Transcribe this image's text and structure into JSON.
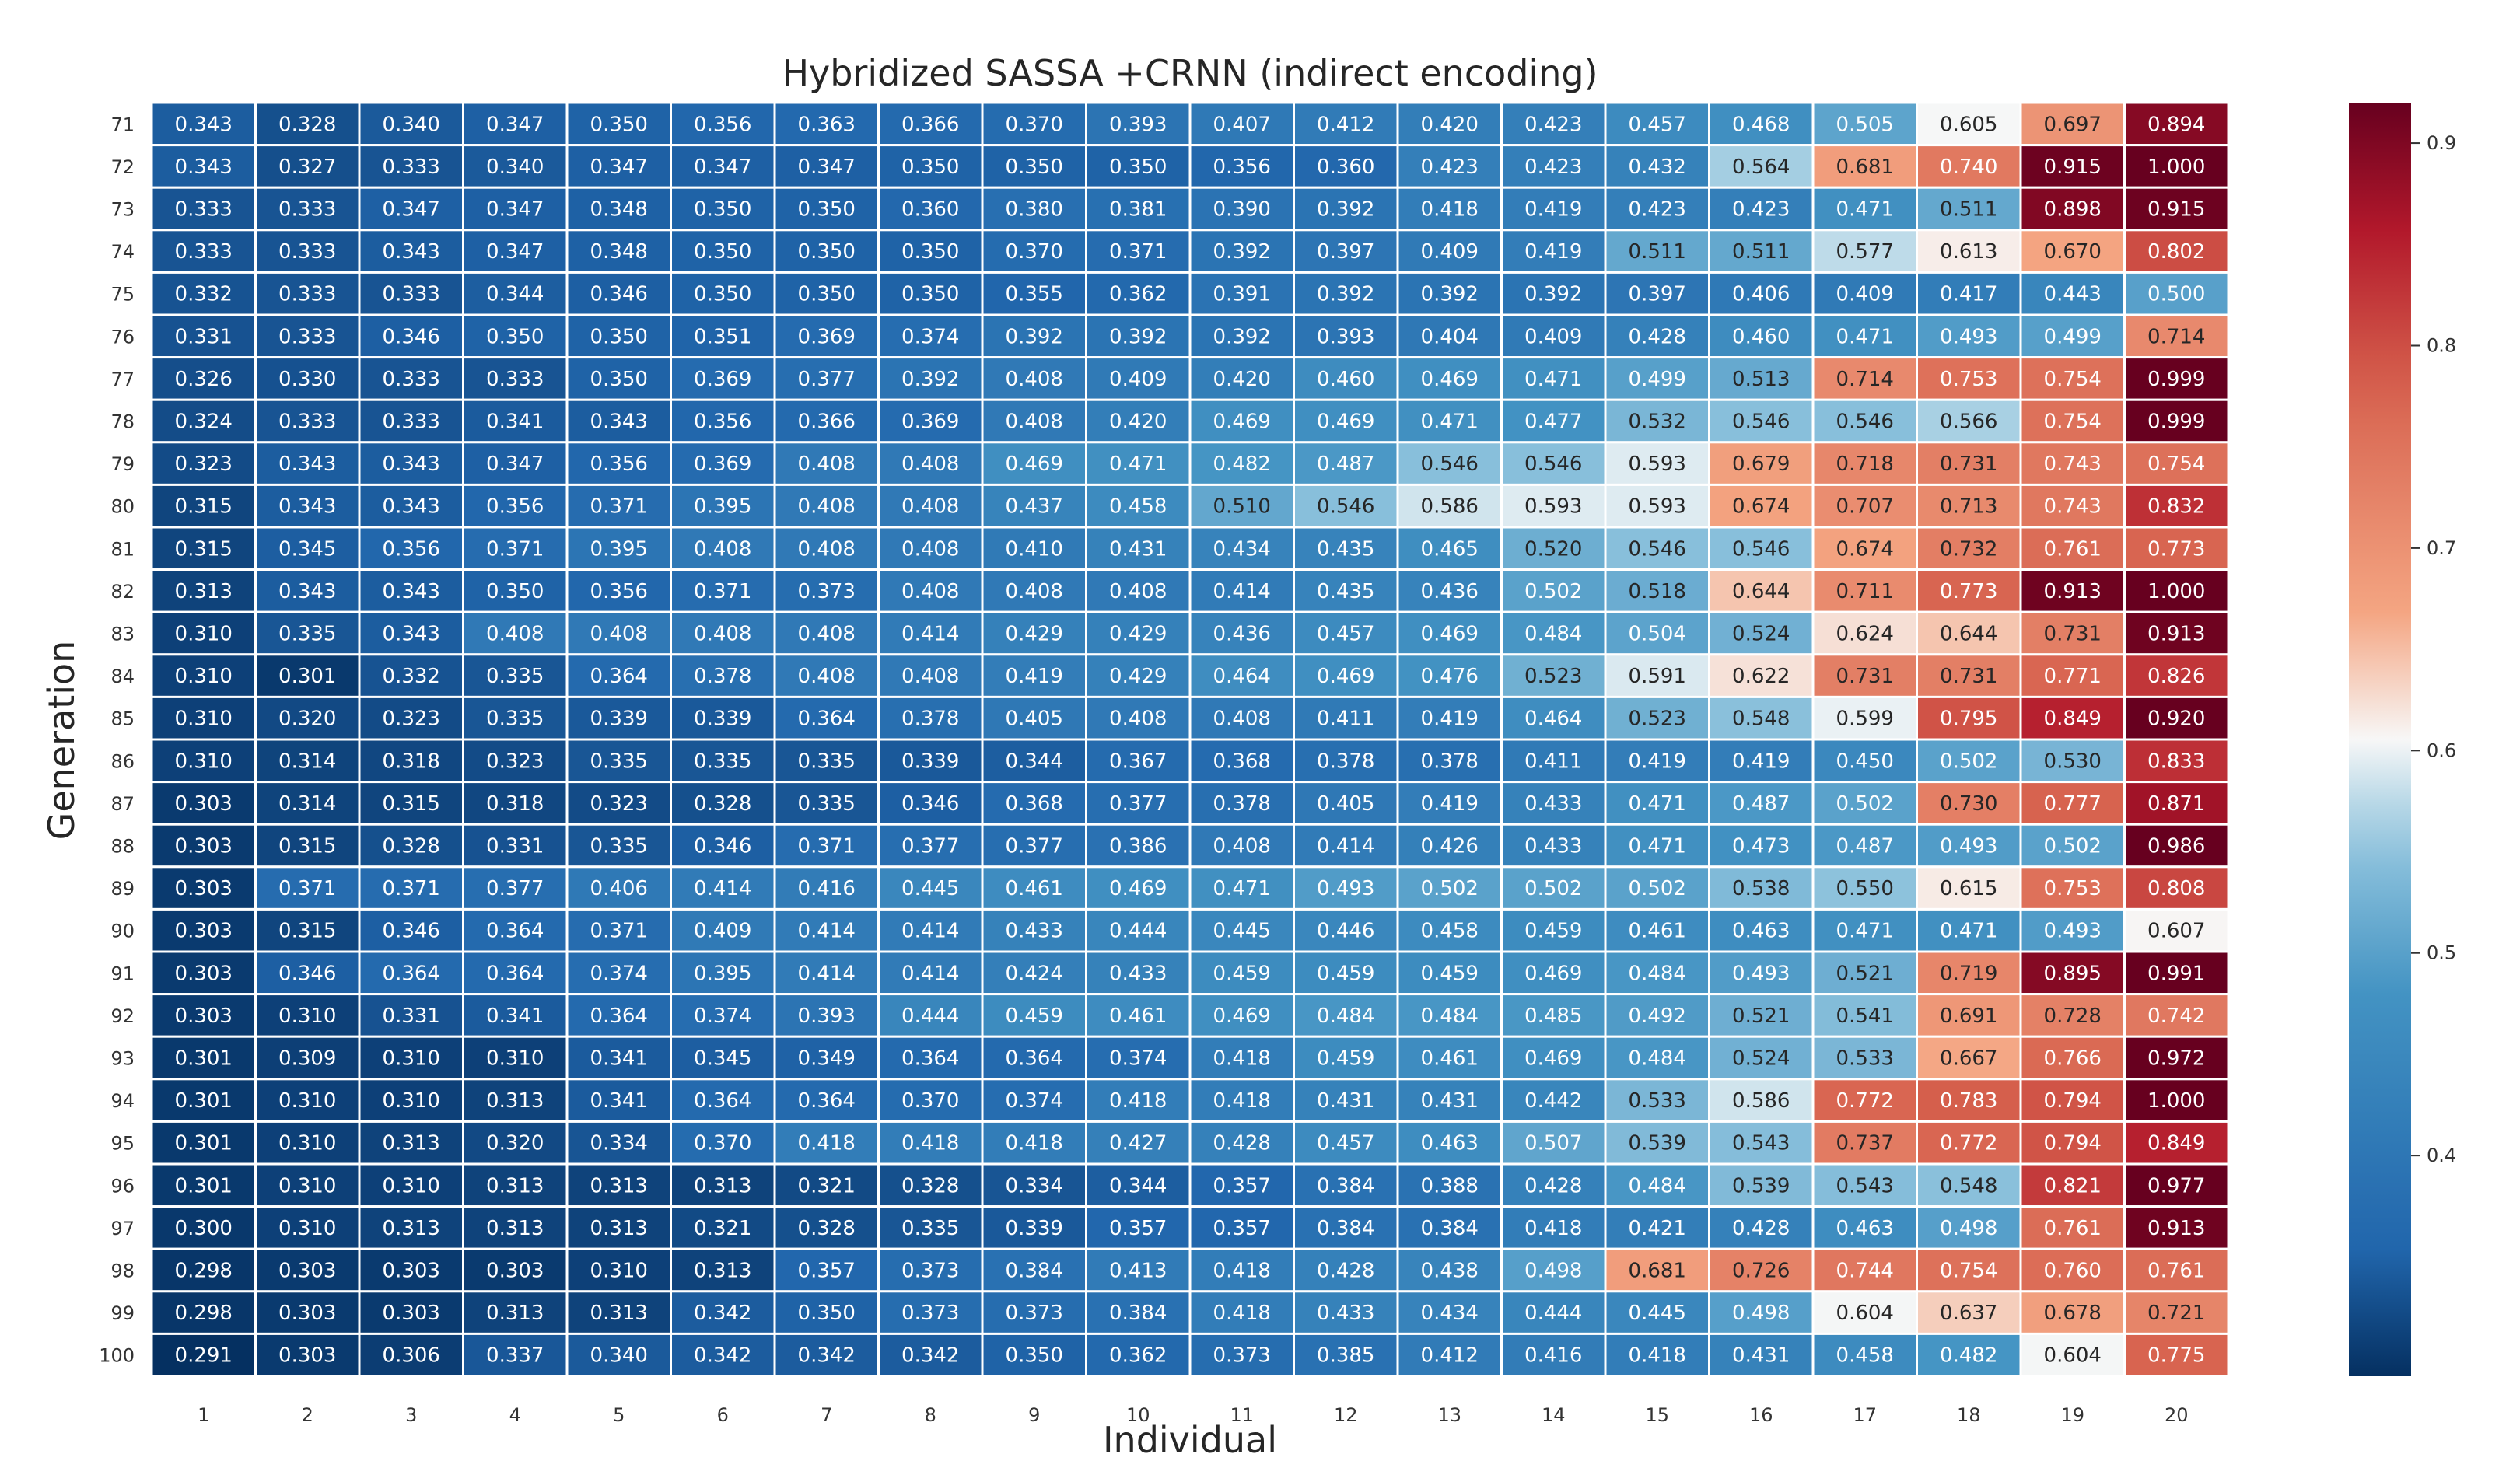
{
  "chart_data": {
    "type": "heatmap",
    "title": "Hybridized SASSA +CRNN (indirect encoding)",
    "xlabel": "Individual",
    "ylabel": "Generation",
    "x_categories": [
      "1",
      "2",
      "3",
      "4",
      "5",
      "6",
      "7",
      "8",
      "9",
      "10",
      "11",
      "12",
      "13",
      "14",
      "15",
      "16",
      "17",
      "18",
      "19",
      "20"
    ],
    "y_categories": [
      "71",
      "72",
      "73",
      "74",
      "75",
      "76",
      "77",
      "78",
      "79",
      "80",
      "81",
      "82",
      "83",
      "84",
      "85",
      "86",
      "87",
      "88",
      "89",
      "90",
      "91",
      "92",
      "93",
      "94",
      "95",
      "96",
      "97",
      "98",
      "99",
      "100"
    ],
    "values": [
      [
        0.343,
        0.328,
        0.34,
        0.347,
        0.35,
        0.356,
        0.363,
        0.366,
        0.37,
        0.393,
        0.407,
        0.412,
        0.42,
        0.423,
        0.457,
        0.468,
        0.505,
        0.605,
        0.697,
        0.894
      ],
      [
        0.343,
        0.327,
        0.333,
        0.34,
        0.347,
        0.347,
        0.347,
        0.35,
        0.35,
        0.35,
        0.356,
        0.36,
        0.423,
        0.423,
        0.432,
        0.564,
        0.681,
        0.74,
        0.915,
        1.0
      ],
      [
        0.333,
        0.333,
        0.347,
        0.347,
        0.348,
        0.35,
        0.35,
        0.36,
        0.38,
        0.381,
        0.39,
        0.392,
        0.418,
        0.419,
        0.423,
        0.423,
        0.471,
        0.511,
        0.898,
        0.915
      ],
      [
        0.333,
        0.333,
        0.343,
        0.347,
        0.348,
        0.35,
        0.35,
        0.35,
        0.37,
        0.371,
        0.392,
        0.397,
        0.409,
        0.419,
        0.511,
        0.511,
        0.577,
        0.613,
        0.67,
        0.802
      ],
      [
        0.332,
        0.333,
        0.333,
        0.344,
        0.346,
        0.35,
        0.35,
        0.35,
        0.355,
        0.362,
        0.391,
        0.392,
        0.392,
        0.392,
        0.397,
        0.406,
        0.409,
        0.417,
        0.443,
        0.5
      ],
      [
        0.331,
        0.333,
        0.346,
        0.35,
        0.35,
        0.351,
        0.369,
        0.374,
        0.392,
        0.392,
        0.392,
        0.393,
        0.404,
        0.409,
        0.428,
        0.46,
        0.471,
        0.493,
        0.499,
        0.714
      ],
      [
        0.326,
        0.33,
        0.333,
        0.333,
        0.35,
        0.369,
        0.377,
        0.392,
        0.408,
        0.409,
        0.42,
        0.46,
        0.469,
        0.471,
        0.499,
        0.513,
        0.714,
        0.753,
        0.754,
        0.999
      ],
      [
        0.324,
        0.333,
        0.333,
        0.341,
        0.343,
        0.356,
        0.366,
        0.369,
        0.408,
        0.42,
        0.469,
        0.469,
        0.471,
        0.477,
        0.532,
        0.546,
        0.546,
        0.566,
        0.754,
        0.999
      ],
      [
        0.323,
        0.343,
        0.343,
        0.347,
        0.356,
        0.369,
        0.408,
        0.408,
        0.469,
        0.471,
        0.482,
        0.487,
        0.546,
        0.546,
        0.593,
        0.679,
        0.718,
        0.731,
        0.743,
        0.754
      ],
      [
        0.315,
        0.343,
        0.343,
        0.356,
        0.371,
        0.395,
        0.408,
        0.408,
        0.437,
        0.458,
        0.51,
        0.546,
        0.586,
        0.593,
        0.593,
        0.674,
        0.707,
        0.713,
        0.743,
        0.832
      ],
      [
        0.315,
        0.345,
        0.356,
        0.371,
        0.395,
        0.408,
        0.408,
        0.408,
        0.41,
        0.431,
        0.434,
        0.435,
        0.465,
        0.52,
        0.546,
        0.546,
        0.674,
        0.732,
        0.761,
        0.773
      ],
      [
        0.313,
        0.343,
        0.343,
        0.35,
        0.356,
        0.371,
        0.373,
        0.408,
        0.408,
        0.408,
        0.414,
        0.435,
        0.436,
        0.502,
        0.518,
        0.644,
        0.711,
        0.773,
        0.913,
        1.0
      ],
      [
        0.31,
        0.335,
        0.343,
        0.408,
        0.408,
        0.408,
        0.408,
        0.414,
        0.429,
        0.429,
        0.436,
        0.457,
        0.469,
        0.484,
        0.504,
        0.524,
        0.624,
        0.644,
        0.731,
        0.913
      ],
      [
        0.31,
        0.301,
        0.332,
        0.335,
        0.364,
        0.378,
        0.408,
        0.408,
        0.419,
        0.429,
        0.464,
        0.469,
        0.476,
        0.523,
        0.591,
        0.622,
        0.731,
        0.731,
        0.771,
        0.826
      ],
      [
        0.31,
        0.32,
        0.323,
        0.335,
        0.339,
        0.339,
        0.364,
        0.378,
        0.405,
        0.408,
        0.408,
        0.411,
        0.419,
        0.464,
        0.523,
        0.548,
        0.599,
        0.795,
        0.849,
        0.92
      ],
      [
        0.31,
        0.314,
        0.318,
        0.323,
        0.335,
        0.335,
        0.335,
        0.339,
        0.344,
        0.367,
        0.368,
        0.378,
        0.378,
        0.411,
        0.419,
        0.419,
        0.45,
        0.502,
        0.53,
        0.833
      ],
      [
        0.303,
        0.314,
        0.315,
        0.318,
        0.323,
        0.328,
        0.335,
        0.346,
        0.368,
        0.377,
        0.378,
        0.405,
        0.419,
        0.433,
        0.471,
        0.487,
        0.502,
        0.73,
        0.777,
        0.871
      ],
      [
        0.303,
        0.315,
        0.328,
        0.331,
        0.335,
        0.346,
        0.371,
        0.377,
        0.377,
        0.386,
        0.408,
        0.414,
        0.426,
        0.433,
        0.471,
        0.473,
        0.487,
        0.493,
        0.502,
        0.986
      ],
      [
        0.303,
        0.371,
        0.371,
        0.377,
        0.406,
        0.414,
        0.416,
        0.445,
        0.461,
        0.469,
        0.471,
        0.493,
        0.502,
        0.502,
        0.502,
        0.538,
        0.55,
        0.615,
        0.753,
        0.808
      ],
      [
        0.303,
        0.315,
        0.346,
        0.364,
        0.371,
        0.409,
        0.414,
        0.414,
        0.433,
        0.444,
        0.445,
        0.446,
        0.458,
        0.459,
        0.461,
        0.463,
        0.471,
        0.471,
        0.493,
        0.607
      ],
      [
        0.303,
        0.346,
        0.364,
        0.364,
        0.374,
        0.395,
        0.414,
        0.414,
        0.424,
        0.433,
        0.459,
        0.459,
        0.459,
        0.469,
        0.484,
        0.493,
        0.521,
        0.719,
        0.895,
        0.991
      ],
      [
        0.303,
        0.31,
        0.331,
        0.341,
        0.364,
        0.374,
        0.393,
        0.444,
        0.459,
        0.461,
        0.469,
        0.484,
        0.484,
        0.485,
        0.492,
        0.521,
        0.541,
        0.691,
        0.728,
        0.742
      ],
      [
        0.301,
        0.309,
        0.31,
        0.31,
        0.341,
        0.345,
        0.349,
        0.364,
        0.364,
        0.374,
        0.418,
        0.459,
        0.461,
        0.469,
        0.484,
        0.524,
        0.533,
        0.667,
        0.766,
        0.972
      ],
      [
        0.301,
        0.31,
        0.31,
        0.313,
        0.341,
        0.364,
        0.364,
        0.37,
        0.374,
        0.418,
        0.418,
        0.431,
        0.431,
        0.442,
        0.533,
        0.586,
        0.772,
        0.783,
        0.794,
        1.0
      ],
      [
        0.301,
        0.31,
        0.313,
        0.32,
        0.334,
        0.37,
        0.418,
        0.418,
        0.418,
        0.427,
        0.428,
        0.457,
        0.463,
        0.507,
        0.539,
        0.543,
        0.737,
        0.772,
        0.794,
        0.849
      ],
      [
        0.301,
        0.31,
        0.31,
        0.313,
        0.313,
        0.313,
        0.321,
        0.328,
        0.334,
        0.344,
        0.357,
        0.384,
        0.388,
        0.428,
        0.484,
        0.539,
        0.543,
        0.548,
        0.821,
        0.977
      ],
      [
        0.3,
        0.31,
        0.313,
        0.313,
        0.313,
        0.321,
        0.328,
        0.335,
        0.339,
        0.357,
        0.357,
        0.384,
        0.384,
        0.418,
        0.421,
        0.428,
        0.463,
        0.498,
        0.761,
        0.913
      ],
      [
        0.298,
        0.303,
        0.303,
        0.303,
        0.31,
        0.313,
        0.357,
        0.373,
        0.384,
        0.413,
        0.418,
        0.428,
        0.438,
        0.498,
        0.681,
        0.726,
        0.744,
        0.754,
        0.76,
        0.761
      ],
      [
        0.298,
        0.303,
        0.303,
        0.313,
        0.313,
        0.342,
        0.35,
        0.373,
        0.373,
        0.384,
        0.418,
        0.433,
        0.434,
        0.444,
        0.445,
        0.498,
        0.604,
        0.637,
        0.678,
        0.721
      ],
      [
        0.291,
        0.303,
        0.306,
        0.337,
        0.34,
        0.342,
        0.342,
        0.342,
        0.35,
        0.362,
        0.373,
        0.385,
        0.412,
        0.416,
        0.418,
        0.431,
        0.458,
        0.482,
        0.604,
        0.775
      ]
    ],
    "colormap": "RdBu_r",
    "color_range": [
      0.291,
      0.92
    ],
    "colorbar_ticks": [
      "0.4",
      "0.5",
      "0.6",
      "0.7",
      "0.8",
      "0.9"
    ],
    "cell_edge_color": "#ffffff",
    "grid": false,
    "legend_position": "right"
  }
}
